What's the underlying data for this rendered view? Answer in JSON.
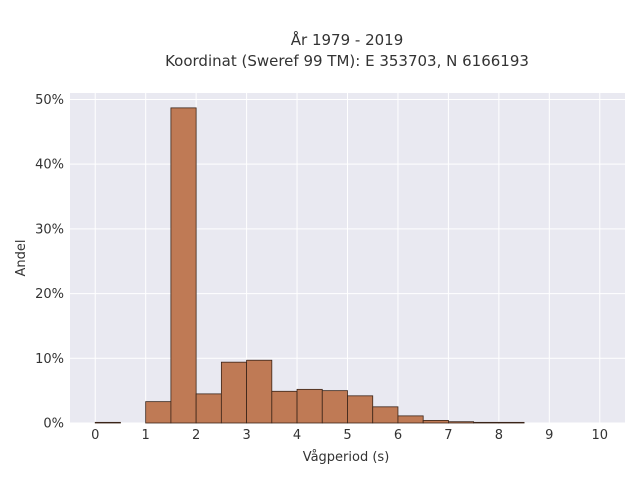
{
  "chart_data": {
    "type": "bar",
    "title_line1": "År 1979 - 2019",
    "title_line2": "Koordinat (Sweref 99 TM): E 353703, N 6166193",
    "xlabel": "Vågperiod (s)",
    "ylabel": "Andel",
    "xlim": [
      -0.5,
      10.5
    ],
    "ylim": [
      0,
      0.51
    ],
    "x_ticks": [
      "0",
      "1",
      "2",
      "3",
      "4",
      "5",
      "6",
      "7",
      "8",
      "9",
      "10"
    ],
    "y_ticks": [
      "0%",
      "10%",
      "20%",
      "30%",
      "40%",
      "50%"
    ],
    "bin_width": 0.5,
    "bins": [
      {
        "start": 0.0,
        "value": 0.001
      },
      {
        "start": 0.5,
        "value": 0.0
      },
      {
        "start": 1.0,
        "value": 0.033
      },
      {
        "start": 1.5,
        "value": 0.487
      },
      {
        "start": 2.0,
        "value": 0.045
      },
      {
        "start": 2.5,
        "value": 0.094
      },
      {
        "start": 3.0,
        "value": 0.097
      },
      {
        "start": 3.5,
        "value": 0.049
      },
      {
        "start": 4.0,
        "value": 0.052
      },
      {
        "start": 4.5,
        "value": 0.05
      },
      {
        "start": 5.0,
        "value": 0.042
      },
      {
        "start": 5.5,
        "value": 0.025
      },
      {
        "start": 6.0,
        "value": 0.011
      },
      {
        "start": 6.5,
        "value": 0.004
      },
      {
        "start": 7.0,
        "value": 0.002
      },
      {
        "start": 7.5,
        "value": 0.001
      },
      {
        "start": 8.0,
        "value": 0.001
      }
    ],
    "grid": true,
    "colors": {
      "bar_fill": "#bf7a55",
      "bar_edge": "#3a2418",
      "plot_bg": "#e9e9f1",
      "grid": "#ffffff"
    }
  }
}
